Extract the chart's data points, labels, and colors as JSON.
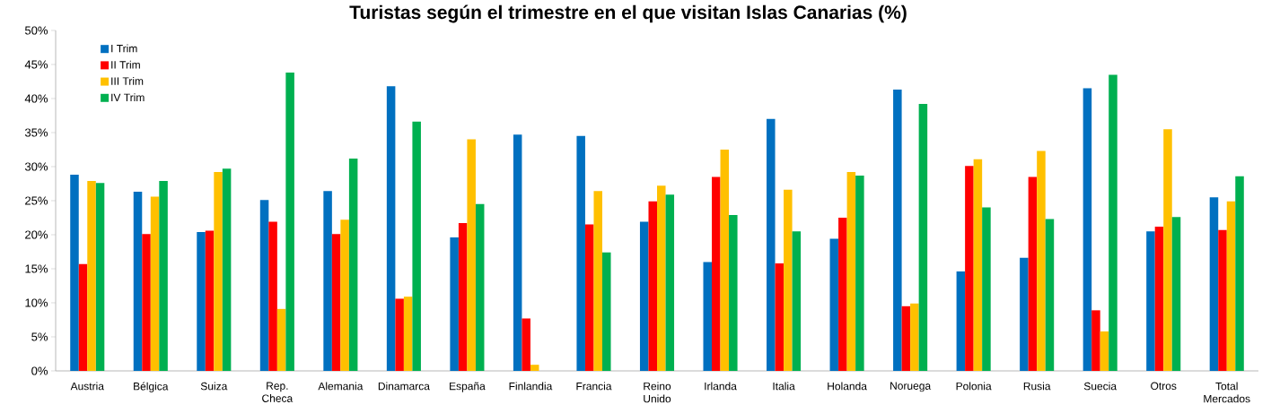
{
  "chart_data": {
    "type": "bar",
    "title": "Turistas según el trimestre en el que visitan Islas Canarias (%)",
    "categories": [
      "Austria",
      "Bélgica",
      "Suiza",
      "Rep. Checa",
      "Alemania",
      "Dinamarca",
      "España",
      "Finlandia",
      "Francia",
      "Reino Unido",
      "Irlanda",
      "Italia",
      "Holanda",
      "Noruega",
      "Polonia",
      "Rusia",
      "Suecia",
      "Otros",
      "Total Mercados"
    ],
    "series": [
      {
        "name": "I Trim",
        "color": "#0070c0",
        "values": [
          28.8,
          26.3,
          20.4,
          25.1,
          26.4,
          41.8,
          19.6,
          34.7,
          34.5,
          21.9,
          16.0,
          37.0,
          19.4,
          41.3,
          14.6,
          16.6,
          41.5,
          20.5,
          25.5
        ]
      },
      {
        "name": "II Trim",
        "color": "#ff0000",
        "values": [
          15.7,
          20.1,
          20.6,
          21.9,
          20.1,
          10.6,
          21.7,
          7.7,
          21.5,
          24.9,
          28.5,
          15.8,
          22.5,
          9.5,
          30.1,
          28.5,
          8.9,
          21.2,
          20.7
        ]
      },
      {
        "name": "III Trim",
        "color": "#ffc000",
        "values": [
          27.9,
          25.6,
          29.2,
          9.1,
          22.2,
          10.9,
          34.0,
          0.9,
          26.4,
          27.2,
          32.5,
          26.6,
          29.2,
          9.9,
          31.1,
          32.3,
          5.8,
          35.5,
          24.9
        ]
      },
      {
        "name": "IV Trim",
        "color": "#00b050",
        "values": [
          27.6,
          27.9,
          29.7,
          43.8,
          31.2,
          36.6,
          24.5,
          0,
          17.4,
          25.9,
          22.9,
          20.5,
          28.7,
          39.2,
          24.0,
          22.3,
          43.5,
          22.6,
          28.6
        ]
      }
    ],
    "ylim": [
      0,
      50
    ],
    "yticks": [
      {
        "value": 0,
        "label": "0%"
      },
      {
        "value": 5,
        "label": "5%"
      },
      {
        "value": 10,
        "label": "10%"
      },
      {
        "value": 15,
        "label": "15%"
      },
      {
        "value": 20,
        "label": "20%"
      },
      {
        "value": 25,
        "label": "25%"
      },
      {
        "value": 30,
        "label": "30%"
      },
      {
        "value": 35,
        "label": "35%"
      },
      {
        "value": 40,
        "label": "40%"
      },
      {
        "value": 45,
        "label": "45%"
      },
      {
        "value": 50,
        "label": "50%"
      }
    ],
    "grid": false,
    "legend": "top left"
  }
}
